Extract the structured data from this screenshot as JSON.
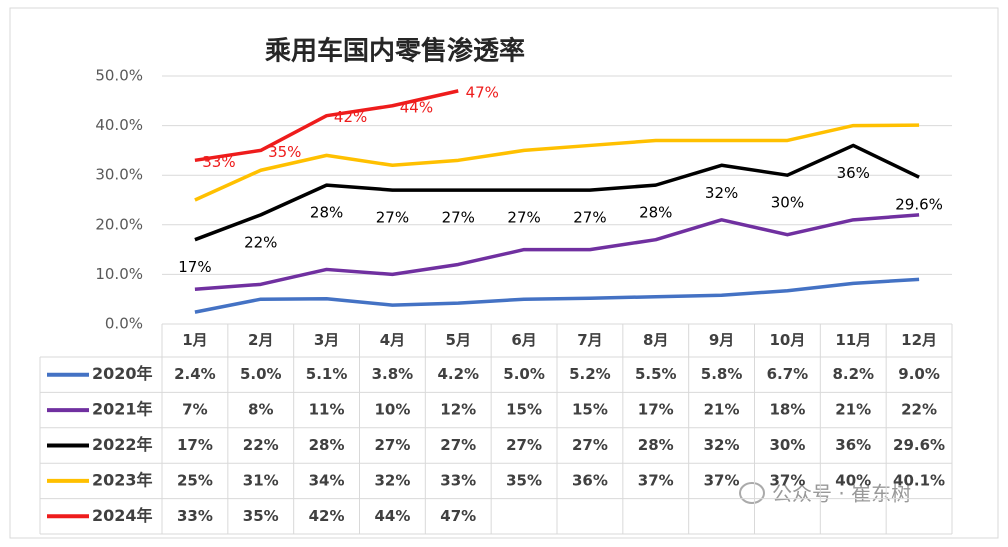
{
  "chart_data": {
    "type": "line",
    "title": "乘用车国内零售渗透率",
    "categories": [
      "1月",
      "2月",
      "3月",
      "4月",
      "5月",
      "6月",
      "7月",
      "8月",
      "9月",
      "10月",
      "11月",
      "12月"
    ],
    "ylim": [
      0,
      50
    ],
    "yticks": [
      {
        "value": 0,
        "label": "0.0%"
      },
      {
        "value": 10,
        "label": "10.0%"
      },
      {
        "value": 20,
        "label": "20.0%"
      },
      {
        "value": 30,
        "label": "30.0%"
      },
      {
        "value": 40,
        "label": "40.0%"
      },
      {
        "value": 50,
        "label": "50.0%"
      }
    ],
    "grid": true,
    "series": [
      {
        "name": "2020年",
        "color": "#4472c4",
        "values": [
          2.4,
          5.0,
          5.1,
          3.8,
          4.2,
          5.0,
          5.2,
          5.5,
          5.8,
          6.7,
          8.2,
          9.0
        ],
        "value_labels": [
          "2.4%",
          "5.0%",
          "5.1%",
          "3.8%",
          "4.2%",
          "5.0%",
          "5.2%",
          "5.5%",
          "5.8%",
          "6.7%",
          "8.2%",
          "9.0%"
        ]
      },
      {
        "name": "2021年",
        "color": "#7030a0",
        "values": [
          7,
          8,
          11,
          10,
          12,
          15,
          15,
          17,
          21,
          18,
          21,
          22
        ],
        "value_labels": [
          "7%",
          "8%",
          "11%",
          "10%",
          "12%",
          "15%",
          "15%",
          "17%",
          "21%",
          "18%",
          "21%",
          "22%"
        ]
      },
      {
        "name": "2022年",
        "color": "#000000",
        "values": [
          17,
          22,
          28,
          27,
          27,
          27,
          27,
          28,
          32,
          30,
          36,
          29.6
        ],
        "value_labels": [
          "17%",
          "22%",
          "28%",
          "27%",
          "27%",
          "27%",
          "27%",
          "28%",
          "32%",
          "30%",
          "36%",
          "29.6%"
        ],
        "show_labels": true
      },
      {
        "name": "2023年",
        "color": "#ffc000",
        "values": [
          25,
          31,
          34,
          32,
          33,
          35,
          36,
          37,
          37,
          37,
          40,
          40.1
        ],
        "value_labels": [
          "25%",
          "31%",
          "34%",
          "32%",
          "33%",
          "35%",
          "36%",
          "37%",
          "37%",
          "37%",
          "40%",
          "40.1%"
        ]
      },
      {
        "name": "2024年",
        "color": "#ee1c1c",
        "values": [
          33,
          35,
          42,
          44,
          47,
          null,
          null,
          null,
          null,
          null,
          null,
          null
        ],
        "value_labels": [
          "33%",
          "35%",
          "42%",
          "44%",
          "47%",
          null,
          null,
          null,
          null,
          null,
          null,
          null
        ],
        "show_labels": true
      }
    ]
  },
  "watermark": "公众号 · 崔东树"
}
